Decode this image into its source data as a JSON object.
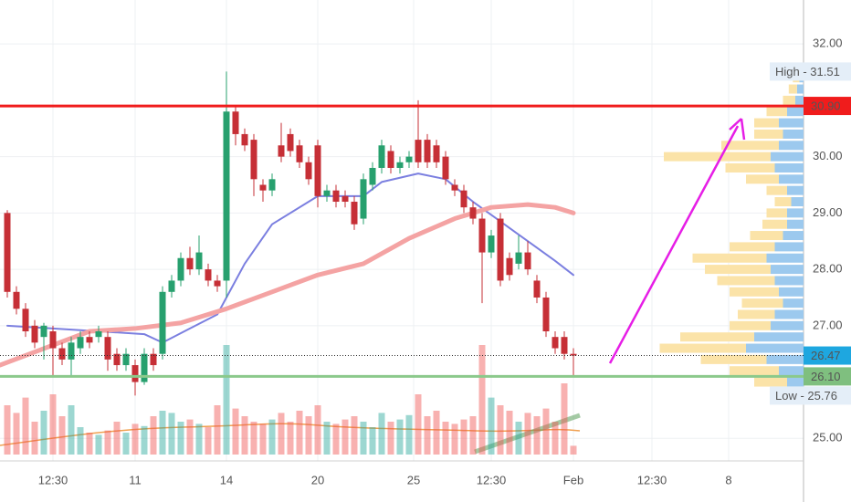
{
  "chart_data": {
    "type": "candlestick",
    "xlim": [
      -0.8,
      87.2
    ],
    "xticks": [
      {
        "value": 5,
        "label": "12:30"
      },
      {
        "value": 14,
        "label": "11"
      },
      {
        "value": 24,
        "label": "14"
      },
      {
        "value": 34,
        "label": "20"
      },
      {
        "value": 44.5,
        "label": "25"
      },
      {
        "value": 53,
        "label": "12:30"
      },
      {
        "value": 62,
        "label": "Feb"
      },
      {
        "value": 70.6,
        "label": "12:30"
      },
      {
        "value": 79,
        "label": "8"
      }
    ],
    "ylim": [
      24.6,
      32.78
    ],
    "yticks": [
      {
        "value": 32,
        "label": "32.00"
      },
      {
        "value": 30,
        "label": "30.00"
      },
      {
        "value": 29,
        "label": "29.00"
      },
      {
        "value": 28,
        "label": "28.00"
      },
      {
        "value": 27,
        "label": "27.00"
      },
      {
        "value": 25,
        "label": "25.00"
      }
    ],
    "up_color": "#27a06e",
    "down_color": "#c62f36",
    "open": [
      29.0,
      27.6,
      27.3,
      27.0,
      26.8,
      26.9,
      26.6,
      26.4,
      26.6,
      26.8,
      26.8,
      26.8,
      26.5,
      26.3,
      26.3,
      26.0,
      26.5,
      26.5,
      27.6,
      27.8,
      28.2,
      28.0,
      28.0,
      27.8,
      27.8,
      30.8,
      30.4,
      30.3,
      29.5,
      29.4,
      30.2,
      30.4,
      30.2,
      29.9,
      30.2,
      29.3,
      29.4,
      29.3,
      29.2,
      28.9,
      29.5,
      29.8,
      30.1,
      29.8,
      29.9,
      30.3,
      30.3,
      30.2,
      30.0,
      29.5,
      29.4,
      29.1,
      28.9,
      28.3,
      28.9,
      28.2,
      28.1,
      28.3,
      27.8,
      27.5,
      26.8,
      26.8,
      26.5
    ],
    "high": [
      29.05,
      27.7,
      27.4,
      27.1,
      27.05,
      27.0,
      26.7,
      26.8,
      26.9,
      26.9,
      27.0,
      26.9,
      26.6,
      26.6,
      26.4,
      26.6,
      26.6,
      27.7,
      27.9,
      28.3,
      28.4,
      28.6,
      28.1,
      27.9,
      31.51,
      30.9,
      30.5,
      30.4,
      29.6,
      29.7,
      30.6,
      30.5,
      30.3,
      30.0,
      30.3,
      29.5,
      29.5,
      29.4,
      29.3,
      29.7,
      29.9,
      30.3,
      30.2,
      30.0,
      30.1,
      31.0,
      30.4,
      30.3,
      30.1,
      29.6,
      29.5,
      29.2,
      29.0,
      28.7,
      29.0,
      28.3,
      28.6,
      28.5,
      27.9,
      27.6,
      26.9,
      26.9,
      26.6
    ],
    "low": [
      27.5,
      27.2,
      26.8,
      26.6,
      26.4,
      26.1,
      26.3,
      26.1,
      26.5,
      26.6,
      26.7,
      26.2,
      26.2,
      26.2,
      25.76,
      25.95,
      26.2,
      26.4,
      27.5,
      27.7,
      27.9,
      27.9,
      27.7,
      27.6,
      27.5,
      30.2,
      30.1,
      29.3,
      29.2,
      29.3,
      29.9,
      30.0,
      29.8,
      29.5,
      29.1,
      29.2,
      29.1,
      29.1,
      28.7,
      28.8,
      29.4,
      29.7,
      29.7,
      29.7,
      29.8,
      29.8,
      29.8,
      29.8,
      29.5,
      29.3,
      29.0,
      28.8,
      27.4,
      28.2,
      27.7,
      27.8,
      28.0,
      27.9,
      27.4,
      26.8,
      26.5,
      26.4,
      26.1
    ],
    "close": [
      27.6,
      27.3,
      26.9,
      26.7,
      27.0,
      26.6,
      26.4,
      26.7,
      26.8,
      26.7,
      26.9,
      26.4,
      26.3,
      26.5,
      26.0,
      26.5,
      26.3,
      27.6,
      27.8,
      28.2,
      28.0,
      28.3,
      27.8,
      27.7,
      30.8,
      30.4,
      30.2,
      29.6,
      29.4,
      29.6,
      30.0,
      30.1,
      29.9,
      29.6,
      29.3,
      29.4,
      29.2,
      29.2,
      28.8,
      29.6,
      29.8,
      30.2,
      29.8,
      29.9,
      30.0,
      29.9,
      29.9,
      29.9,
      29.6,
      29.4,
      29.1,
      28.9,
      28.3,
      28.6,
      27.8,
      27.9,
      28.3,
      28.0,
      27.5,
      26.9,
      26.6,
      26.5,
      26.47
    ],
    "volume": [
      45,
      38,
      52,
      30,
      40,
      55,
      35,
      45,
      25,
      20,
      18,
      22,
      30,
      20,
      28,
      26,
      35,
      40,
      38,
      30,
      32,
      28,
      25,
      45,
      100,
      42,
      35,
      30,
      28,
      32,
      38,
      30,
      40,
      35,
      45,
      30,
      28,
      32,
      35,
      30,
      25,
      38,
      30,
      32,
      36,
      55,
      35,
      40,
      30,
      28,
      32,
      35,
      100,
      52,
      45,
      40,
      30,
      38,
      35,
      42,
      30,
      65,
      8
    ],
    "vlim": [
      0,
      100
    ],
    "series": [
      {
        "color": "#7b7fe0",
        "width": 2,
        "x": [
          0,
          5,
          10,
          15,
          17,
          20,
          23,
          26,
          29,
          34,
          39,
          41,
          45,
          48,
          51,
          54,
          57,
          60,
          62
        ],
        "values": [
          27.0,
          26.95,
          26.9,
          26.85,
          26.7,
          26.95,
          27.2,
          28.1,
          28.8,
          29.3,
          29.3,
          29.55,
          29.7,
          29.6,
          29.2,
          28.85,
          28.5,
          28.15,
          27.9
        ]
      },
      {
        "color": "#f4a3a3",
        "width": 5,
        "x": [
          -0.8,
          9,
          14,
          19,
          24,
          29,
          34,
          39,
          44,
          49,
          53,
          57,
          60,
          62
        ],
        "values": [
          26.3,
          26.9,
          26.95,
          27.05,
          27.3,
          27.6,
          27.9,
          28.1,
          28.55,
          28.9,
          29.1,
          29.15,
          29.1,
          29.0
        ]
      }
    ],
    "levels": [
      {
        "value": 30.9,
        "label": "30.90",
        "color": "#f01c1c",
        "style": "solid"
      },
      {
        "value": 26.47,
        "label": "26.47",
        "color": "#333333",
        "box": "#1ea7e0",
        "style": "dotted"
      },
      {
        "value": 26.1,
        "label": "26.10",
        "color": "#8bc98b",
        "box": "#7fbf7f",
        "style": "solid"
      }
    ],
    "markers": [
      {
        "value": 31.51,
        "label": "High - 31.51"
      },
      {
        "value": 25.76,
        "label": "Low - 25.76"
      }
    ],
    "profile": {
      "levels": [
        26.0,
        26.2,
        26.4,
        26.6,
        26.8,
        27.0,
        27.2,
        27.4,
        27.6,
        27.8,
        28.0,
        28.2,
        28.4,
        28.6,
        28.8,
        29.0,
        29.2,
        29.4,
        29.6,
        29.8,
        30.0,
        30.2,
        30.4,
        30.6,
        30.8,
        31.0,
        31.2,
        31.4
      ],
      "up": [
        20,
        30,
        45,
        70,
        60,
        40,
        35,
        25,
        30,
        35,
        40,
        45,
        35,
        25,
        20,
        20,
        15,
        20,
        30,
        35,
        40,
        30,
        25,
        30,
        20,
        10,
        8,
        5
      ],
      "down": [
        40,
        60,
        80,
        105,
        90,
        50,
        45,
        50,
        60,
        70,
        80,
        90,
        55,
        40,
        30,
        25,
        20,
        25,
        40,
        60,
        130,
        70,
        35,
        30,
        25,
        15,
        10,
        8
      ],
      "lim": [
        0,
        200
      ],
      "up_color": "#9cc9ee",
      "down_color": "#fbe3a8"
    }
  }
}
